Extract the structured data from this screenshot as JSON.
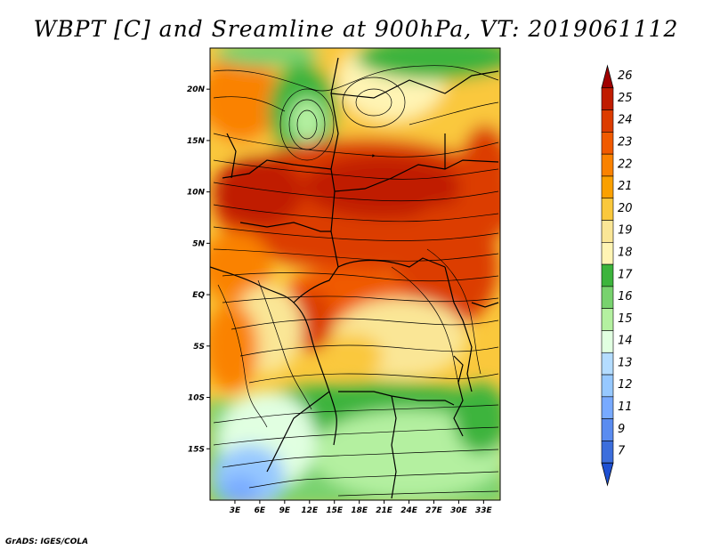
{
  "title": "WBPT [C] and Sreamline at 900hPa, VT: 2019061112",
  "credit": "GrADS: IGES/COLA",
  "map": {
    "lon_range": [
      0,
      35
    ],
    "lat_range": [
      -20,
      24
    ],
    "lat_ticks": [
      {
        "value": 20,
        "label": "20N"
      },
      {
        "value": 15,
        "label": "15N"
      },
      {
        "value": 10,
        "label": "10N"
      },
      {
        "value": 5,
        "label": "5N"
      },
      {
        "value": 0,
        "label": "EQ"
      },
      {
        "value": -5,
        "label": "5S"
      },
      {
        "value": -10,
        "label": "10S"
      },
      {
        "value": -15,
        "label": "15S"
      }
    ],
    "lon_ticks": [
      {
        "value": 3,
        "label": "3E"
      },
      {
        "value": 6,
        "label": "6E"
      },
      {
        "value": 9,
        "label": "9E"
      },
      {
        "value": 12,
        "label": "12E"
      },
      {
        "value": 15,
        "label": "15E"
      },
      {
        "value": 18,
        "label": "18E"
      },
      {
        "value": 21,
        "label": "21E"
      },
      {
        "value": 24,
        "label": "24E"
      },
      {
        "value": 27,
        "label": "27E"
      },
      {
        "value": 30,
        "label": "30E"
      },
      {
        "value": 33,
        "label": "33E"
      }
    ]
  },
  "colorbar": {
    "levels": [
      {
        "label": "26",
        "color": "#a00000"
      },
      {
        "label": "25",
        "color": "#c01c00"
      },
      {
        "label": "24",
        "color": "#dc3c00"
      },
      {
        "label": "23",
        "color": "#f05a00"
      },
      {
        "label": "22",
        "color": "#fa8200"
      },
      {
        "label": "21",
        "color": "#faa000"
      },
      {
        "label": "20",
        "color": "#fac83c"
      },
      {
        "label": "19",
        "color": "#fae696"
      },
      {
        "label": "18",
        "color": "#fff4b4"
      },
      {
        "label": "17",
        "color": "#3cb43c"
      },
      {
        "label": "16",
        "color": "#78d26e"
      },
      {
        "label": "15",
        "color": "#b4f0a0"
      },
      {
        "label": "14",
        "color": "#e1ffe1"
      },
      {
        "label": "13",
        "color": "#b4dcff"
      },
      {
        "label": "12",
        "color": "#96c8ff"
      },
      {
        "label": "11",
        "color": "#78aaff"
      },
      {
        "label": "9",
        "color": "#5a8cf0"
      },
      {
        "label": "7",
        "color": "#3c6edc"
      }
    ],
    "bottom_color": "#1e50d2"
  }
}
